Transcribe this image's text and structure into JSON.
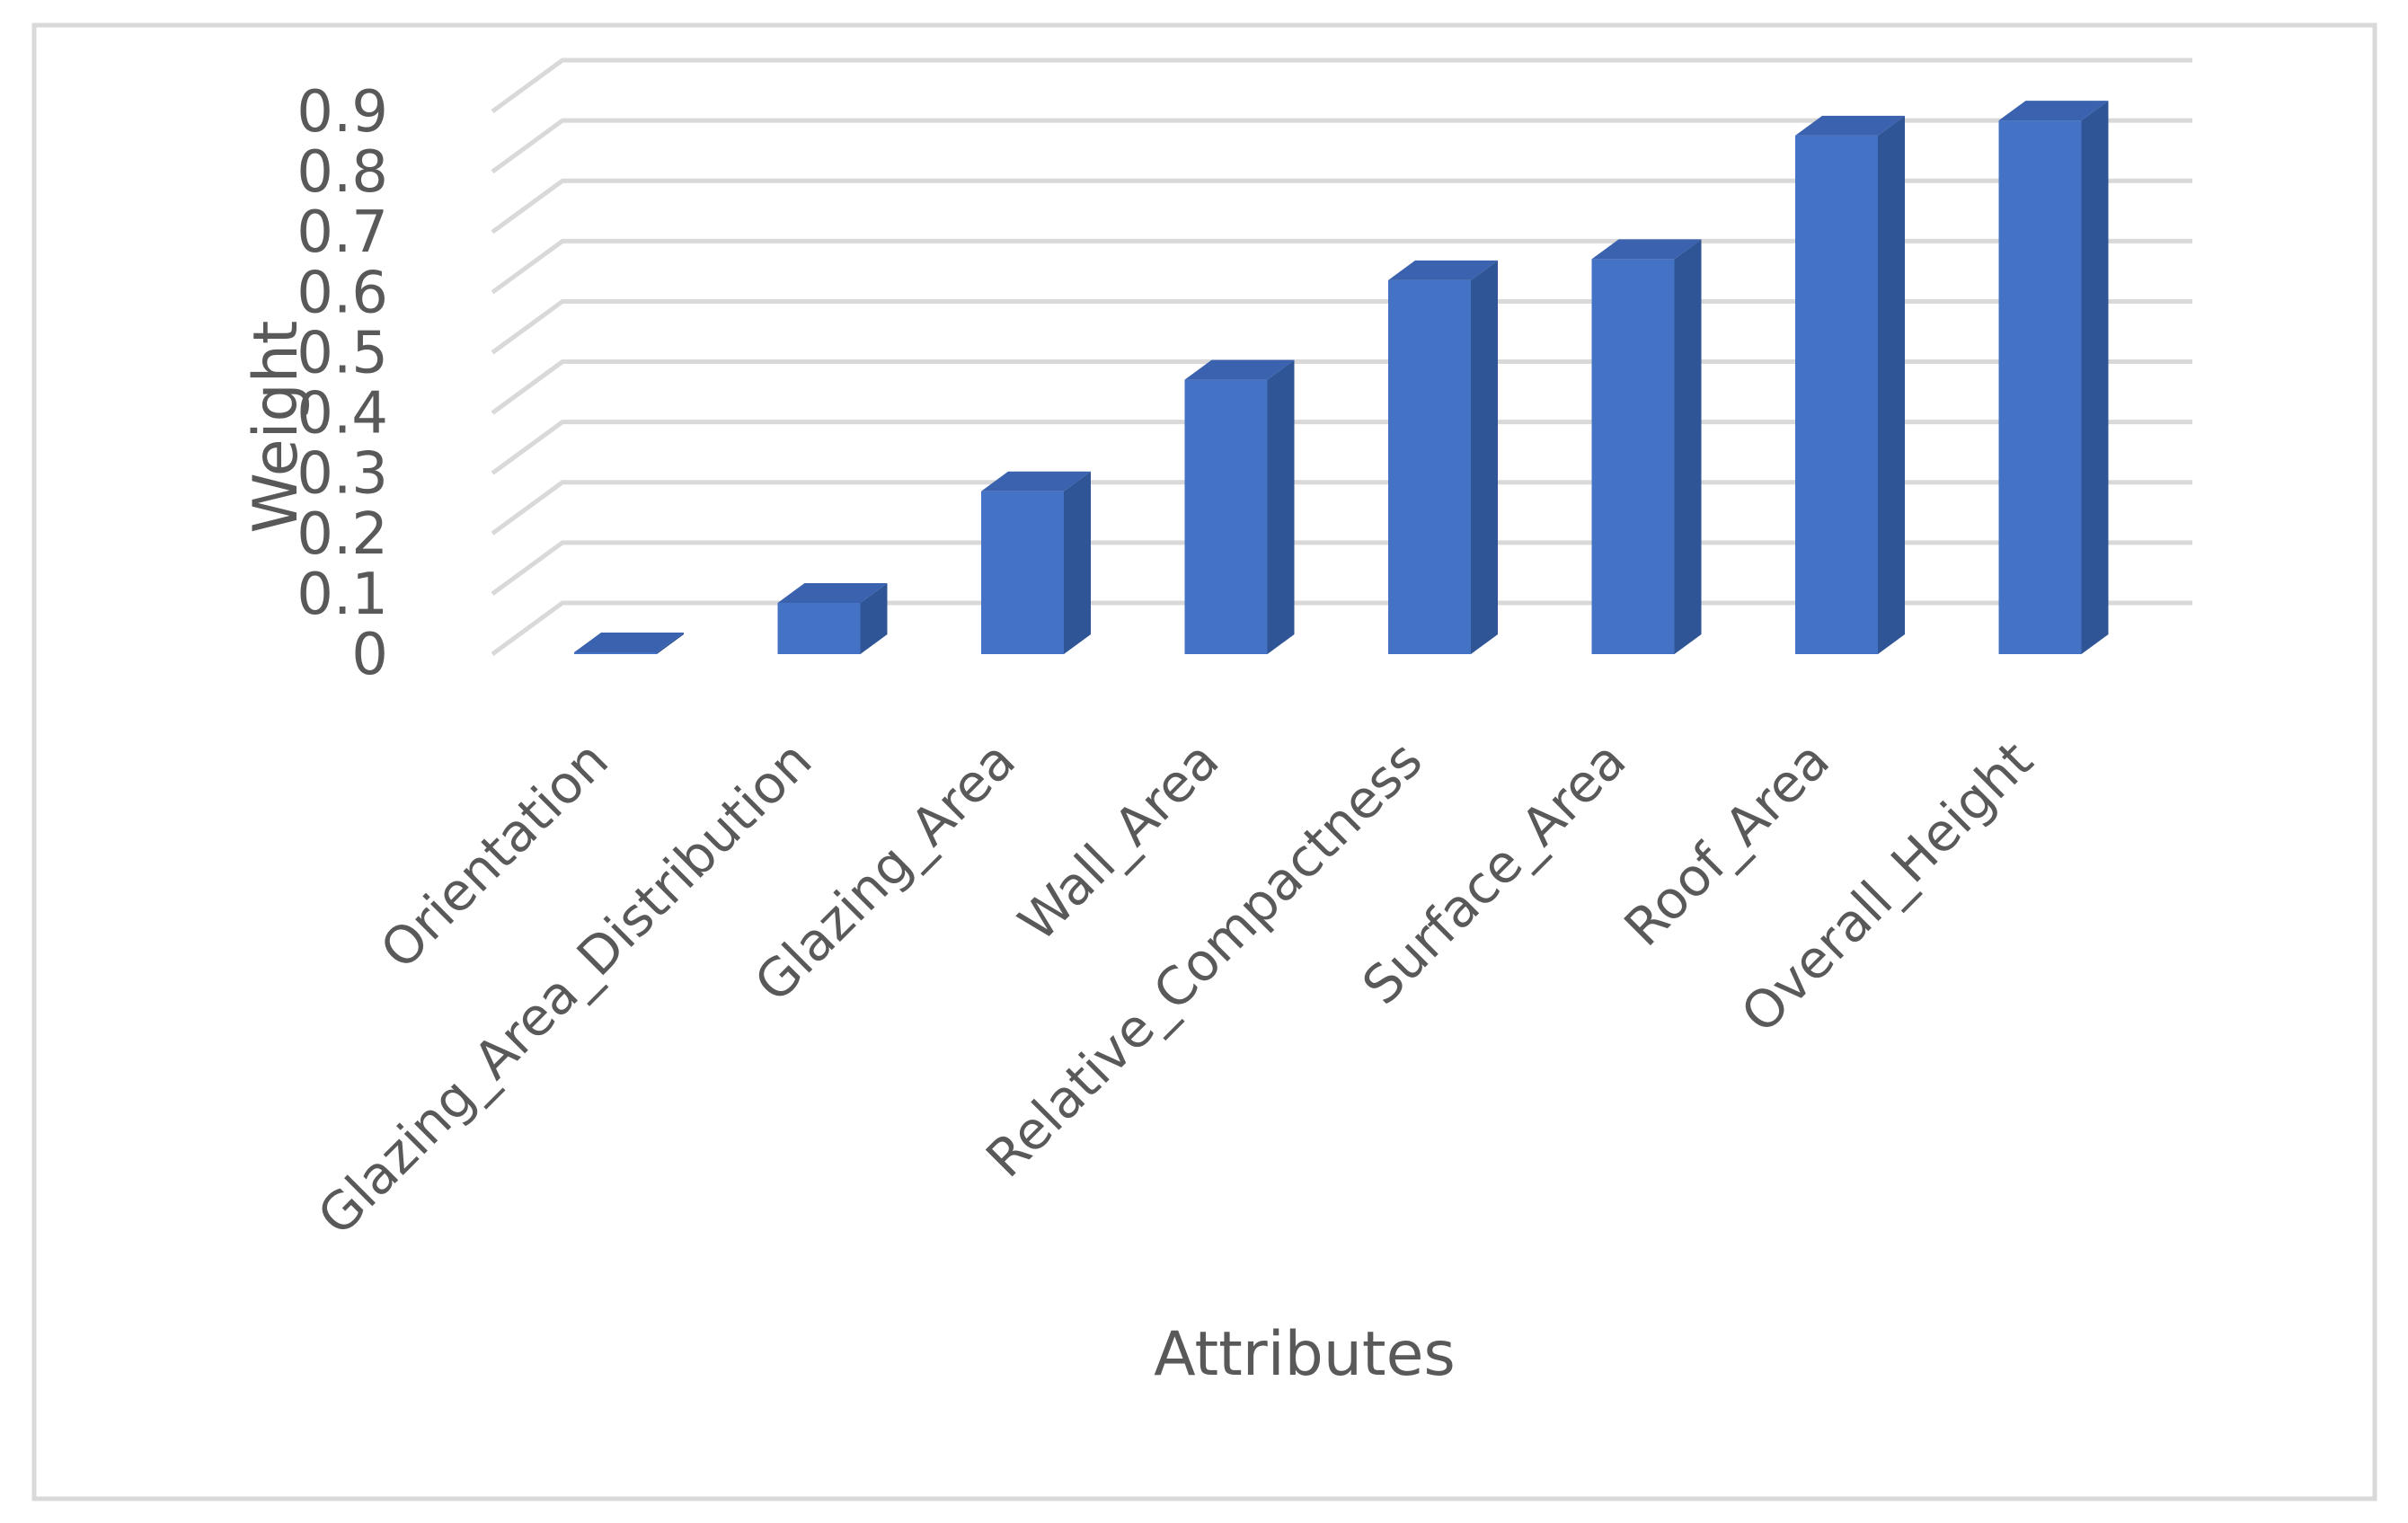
{
  "chart_data": {
    "type": "bar",
    "title": "",
    "xlabel": "Attributes",
    "ylabel": "Weight",
    "ylim": [
      0,
      0.9
    ],
    "yticks": [
      "0",
      "0.1",
      "0.2",
      "0.3",
      "0.4",
      "0.5",
      "0.6",
      "0.7",
      "0.8",
      "0.9"
    ],
    "categories": [
      "Orientation",
      "Glazing_Area_Distribution",
      "Glazing_Area",
      "Wall_Area",
      "Relative_Compactness",
      "Surface_Area",
      "Roof_Area",
      "Overall_Height"
    ],
    "values": [
      0.003,
      0.085,
      0.27,
      0.455,
      0.62,
      0.655,
      0.86,
      0.885
    ],
    "grid": true,
    "legend": "none",
    "style": "3d-column",
    "colors": {
      "front": "#4472C4",
      "side": "#2F5597",
      "top": "#3A62AE",
      "grid": "#D9D9D9",
      "text": "#595959"
    }
  }
}
